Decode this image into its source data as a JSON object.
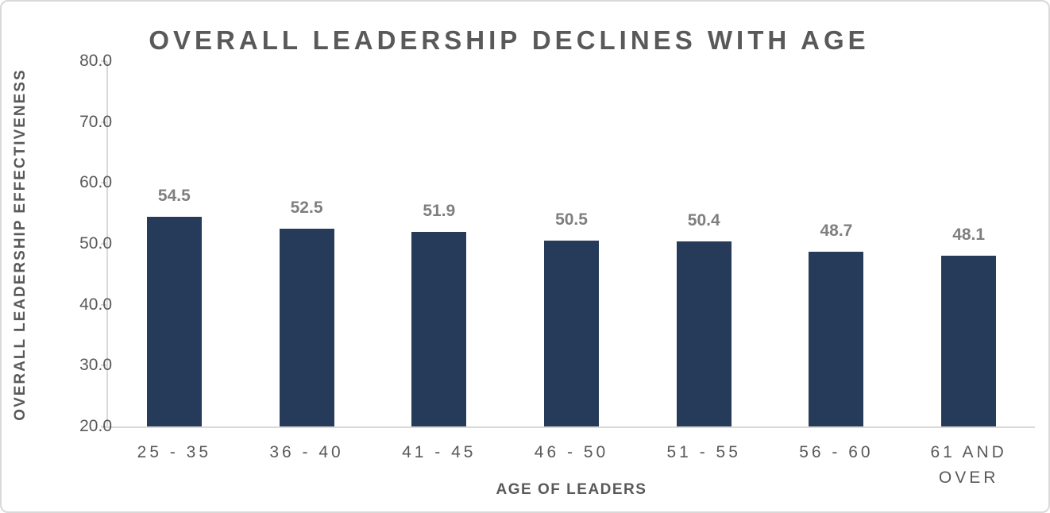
{
  "chart_data": {
    "type": "bar",
    "title": "OVERALL LEADERSHIP DECLINES WITH AGE",
    "categories": [
      "25 - 35",
      "36 - 40",
      "41 - 45",
      "46 - 50",
      "51 - 55",
      "56 - 60",
      "61 AND OVER"
    ],
    "values": [
      54.5,
      52.5,
      51.9,
      50.5,
      50.4,
      48.7,
      48.1
    ],
    "data_labels": [
      "54.5",
      "52.5",
      "51.9",
      "50.5",
      "50.4",
      "48.7",
      "48.1"
    ],
    "xlabel": "AGE OF LEADERS",
    "ylabel": "OVERALL LEADERSHIP EFFECTIVENESS",
    "ylim": [
      20,
      80
    ],
    "ytick_step": 10,
    "ytick_labels": [
      "80.0",
      "70.0",
      "60.0",
      "50.0",
      "40.0",
      "30.0",
      "20.0"
    ],
    "grid": "off",
    "legend": "none",
    "colors": {
      "bar": "#263a59",
      "axis_line": "#d9d9d9",
      "axis_text": "#595959",
      "data_label": "#7f7f7f",
      "border": "#d9d9d9"
    }
  }
}
